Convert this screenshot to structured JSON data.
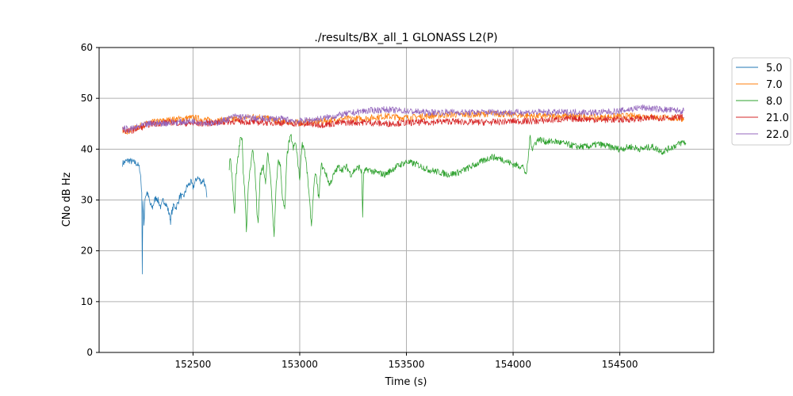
{
  "chart_data": {
    "type": "line",
    "title": "./results/BX_all_1 GLONASS L2(P)",
    "xlabel": "Time (s)",
    "ylabel": "CNo dB Hz",
    "xlim": [
      152060,
      154940
    ],
    "ylim": [
      0,
      60
    ],
    "xticks": [
      152500,
      153000,
      153500,
      154000,
      154500
    ],
    "yticks": [
      0,
      10,
      20,
      30,
      40,
      50,
      60
    ],
    "grid": true,
    "legend_position": "outside-right-top",
    "series": [
      {
        "name": "5.0",
        "color": "#1f77b4",
        "segments": [
          [
            [
              152170,
              37.2
            ],
            [
              152185,
              37.6
            ],
            [
              152200,
              37.8
            ],
            [
              152215,
              37.5
            ],
            [
              152230,
              37.3
            ],
            [
              152240,
              37.0
            ],
            [
              152250,
              36.2
            ],
            [
              152255,
              34.5
            ],
            [
              152260,
              31.0
            ],
            [
              152262,
              16.0
            ],
            [
              152265,
              30.0
            ],
            [
              152270,
              25.0
            ],
            [
              152275,
              30.5
            ],
            [
              152285,
              31.5
            ],
            [
              152295,
              30.0
            ],
            [
              152300,
              29.0
            ],
            [
              152310,
              28.5
            ],
            [
              152320,
              30.0
            ],
            [
              152330,
              30.5
            ],
            [
              152340,
              29.5
            ],
            [
              152350,
              28.5
            ],
            [
              152360,
              30.0
            ],
            [
              152370,
              29.5
            ],
            [
              152380,
              28.5
            ],
            [
              152390,
              27.0
            ],
            [
              152395,
              25.8
            ],
            [
              152400,
              27.5
            ],
            [
              152410,
              29.0
            ],
            [
              152420,
              28.5
            ],
            [
              152430,
              29.5
            ],
            [
              152440,
              31.0
            ],
            [
              152450,
              30.5
            ],
            [
              152460,
              31.0
            ],
            [
              152470,
              32.5
            ],
            [
              152480,
              33.0
            ],
            [
              152490,
              33.5
            ],
            [
              152500,
              32.5
            ],
            [
              152510,
              33.5
            ],
            [
              152520,
              34.5
            ],
            [
              152530,
              34.0
            ],
            [
              152540,
              33.5
            ],
            [
              152550,
              34.0
            ],
            [
              152560,
              32.0
            ],
            [
              152565,
              30.5
            ]
          ]
        ]
      },
      {
        "name": "7.0",
        "color": "#ff7f0e",
        "segments": [
          [
            [
              152170,
              43.8
            ],
            [
              152200,
              43.5
            ],
            [
              152250,
              44.5
            ],
            [
              152300,
              45.2
            ],
            [
              152400,
              45.8
            ],
            [
              152500,
              46.2
            ],
            [
              152600,
              45.5
            ],
            [
              152700,
              46.0
            ],
            [
              152800,
              46.5
            ],
            [
              152900,
              45.5
            ],
            [
              153000,
              45.2
            ],
            [
              153100,
              45.5
            ],
            [
              153200,
              46.0
            ],
            [
              153300,
              46.0
            ],
            [
              153400,
              46.5
            ],
            [
              153500,
              46.2
            ],
            [
              153600,
              46.5
            ],
            [
              153700,
              46.8
            ],
            [
              153800,
              46.8
            ],
            [
              153900,
              47.0
            ],
            [
              154000,
              46.8
            ],
            [
              154100,
              46.5
            ],
            [
              154200,
              46.5
            ],
            [
              154300,
              46.5
            ],
            [
              154400,
              46.2
            ],
            [
              154500,
              46.5
            ],
            [
              154600,
              46.5
            ],
            [
              154700,
              46.2
            ],
            [
              154800,
              46.0
            ]
          ]
        ]
      },
      {
        "name": "8.0",
        "color": "#2ca02c",
        "segments": [
          [
            [
              152670,
              36.5
            ],
            [
              152675,
              38.5
            ],
            [
              152680,
              36.0
            ],
            [
              152690,
              30.0
            ],
            [
              152695,
              27.0
            ],
            [
              152700,
              34.0
            ],
            [
              152710,
              38.0
            ],
            [
              152720,
              41.5
            ],
            [
              152730,
              42.5
            ],
            [
              152735,
              36.0
            ],
            [
              152745,
              30.0
            ],
            [
              152750,
              24.0
            ],
            [
              152760,
              33.0
            ],
            [
              152770,
              37.0
            ],
            [
              152780,
              40.0
            ],
            [
              152790,
              36.0
            ],
            [
              152800,
              27.5
            ],
            [
              152805,
              25.0
            ],
            [
              152815,
              35.0
            ],
            [
              152830,
              36.5
            ],
            [
              152840,
              33.0
            ],
            [
              152850,
              39.5
            ],
            [
              152860,
              36.0
            ],
            [
              152870,
              30.0
            ],
            [
              152880,
              22.5
            ],
            [
              152890,
              33.0
            ],
            [
              152900,
              38.0
            ],
            [
              152910,
              36.5
            ],
            [
              152920,
              30.0
            ],
            [
              152930,
              28.0
            ],
            [
              152940,
              38.5
            ],
            [
              152950,
              41.5
            ],
            [
              152960,
              42.5
            ],
            [
              152970,
              40.0
            ],
            [
              152980,
              41.5
            ],
            [
              152990,
              38.0
            ],
            [
              153000,
              34.0
            ],
            [
              153010,
              41.0
            ],
            [
              153020,
              40.5
            ],
            [
              153030,
              37.5
            ],
            [
              153040,
              33.0
            ],
            [
              153055,
              25.0
            ],
            [
              153065,
              32.0
            ],
            [
              153075,
              35.5
            ],
            [
              153090,
              30.0
            ],
            [
              153100,
              37.0
            ],
            [
              153120,
              35.5
            ],
            [
              153140,
              33.0
            ],
            [
              153160,
              35.0
            ],
            [
              153180,
              36.5
            ],
            [
              153200,
              36.0
            ],
            [
              153220,
              36.5
            ],
            [
              153240,
              35.0
            ],
            [
              153260,
              36.0
            ],
            [
              153280,
              36.5
            ],
            [
              153290,
              35.5
            ],
            [
              153295,
              27.0
            ],
            [
              153300,
              35.5
            ],
            [
              153320,
              36.0
            ],
            [
              153350,
              35.5
            ],
            [
              153400,
              35.0
            ],
            [
              153450,
              36.5
            ],
            [
              153500,
              37.5
            ],
            [
              153550,
              37.0
            ],
            [
              153600,
              36.0
            ],
            [
              153650,
              35.5
            ],
            [
              153700,
              35.0
            ],
            [
              153750,
              35.5
            ],
            [
              153800,
              36.5
            ],
            [
              153850,
              37.5
            ],
            [
              153900,
              38.5
            ],
            [
              153950,
              38.0
            ],
            [
              154000,
              37.0
            ],
            [
              154050,
              36.5
            ],
            [
              154060,
              34.5
            ],
            [
              154070,
              38.0
            ],
            [
              154080,
              42.5
            ],
            [
              154090,
              40.0
            ],
            [
              154100,
              41.0
            ],
            [
              154120,
              42.0
            ],
            [
              154150,
              41.5
            ],
            [
              154200,
              41.5
            ],
            [
              154250,
              41.0
            ],
            [
              154300,
              40.5
            ],
            [
              154350,
              40.5
            ],
            [
              154400,
              41.0
            ],
            [
              154450,
              40.5
            ],
            [
              154500,
              40.0
            ],
            [
              154550,
              40.5
            ],
            [
              154600,
              40.0
            ],
            [
              154650,
              40.5
            ],
            [
              154700,
              39.5
            ],
            [
              154750,
              40.5
            ],
            [
              154800,
              41.5
            ],
            [
              154810,
              41.0
            ]
          ]
        ]
      },
      {
        "name": "21.0",
        "color": "#d62728",
        "segments": [
          [
            [
              152170,
              43.8
            ],
            [
              152200,
              43.5
            ],
            [
              152250,
              44.2
            ],
            [
              152300,
              45.0
            ],
            [
              152400,
              45.3
            ],
            [
              152500,
              45.0
            ],
            [
              152600,
              45.2
            ],
            [
              152700,
              45.5
            ],
            [
              152800,
              45.3
            ],
            [
              152900,
              45.2
            ],
            [
              153000,
              45.0
            ],
            [
              153100,
              44.8
            ],
            [
              153200,
              45.2
            ],
            [
              153300,
              45.3
            ],
            [
              153400,
              45.0
            ],
            [
              153500,
              45.2
            ],
            [
              153600,
              45.3
            ],
            [
              153700,
              45.5
            ],
            [
              153800,
              45.3
            ],
            [
              153900,
              45.3
            ],
            [
              154000,
              45.5
            ],
            [
              154100,
              45.5
            ],
            [
              154200,
              45.8
            ],
            [
              154300,
              46.0
            ],
            [
              154400,
              45.8
            ],
            [
              154500,
              45.8
            ],
            [
              154600,
              46.0
            ],
            [
              154700,
              46.2
            ],
            [
              154800,
              46.3
            ]
          ]
        ]
      },
      {
        "name": "22.0",
        "color": "#9467bd",
        "segments": [
          [
            [
              152170,
              44.2
            ],
            [
              152200,
              43.8
            ],
            [
              152250,
              44.5
            ],
            [
              152300,
              45.0
            ],
            [
              152400,
              45.2
            ],
            [
              152500,
              45.5
            ],
            [
              152600,
              45.0
            ],
            [
              152700,
              46.5
            ],
            [
              152800,
              46.0
            ],
            [
              152900,
              46.0
            ],
            [
              153000,
              45.5
            ],
            [
              153100,
              46.0
            ],
            [
              153200,
              46.8
            ],
            [
              153300,
              47.5
            ],
            [
              153400,
              47.8
            ],
            [
              153500,
              47.5
            ],
            [
              153600,
              47.2
            ],
            [
              153700,
              47.3
            ],
            [
              153800,
              47.2
            ],
            [
              153900,
              47.3
            ],
            [
              154000,
              47.2
            ],
            [
              154100,
              47.3
            ],
            [
              154200,
              47.2
            ],
            [
              154300,
              47.3
            ],
            [
              154400,
              47.2
            ],
            [
              154500,
              47.5
            ],
            [
              154600,
              48.2
            ],
            [
              154700,
              47.8
            ],
            [
              154800,
              47.5
            ]
          ]
        ]
      }
    ]
  }
}
